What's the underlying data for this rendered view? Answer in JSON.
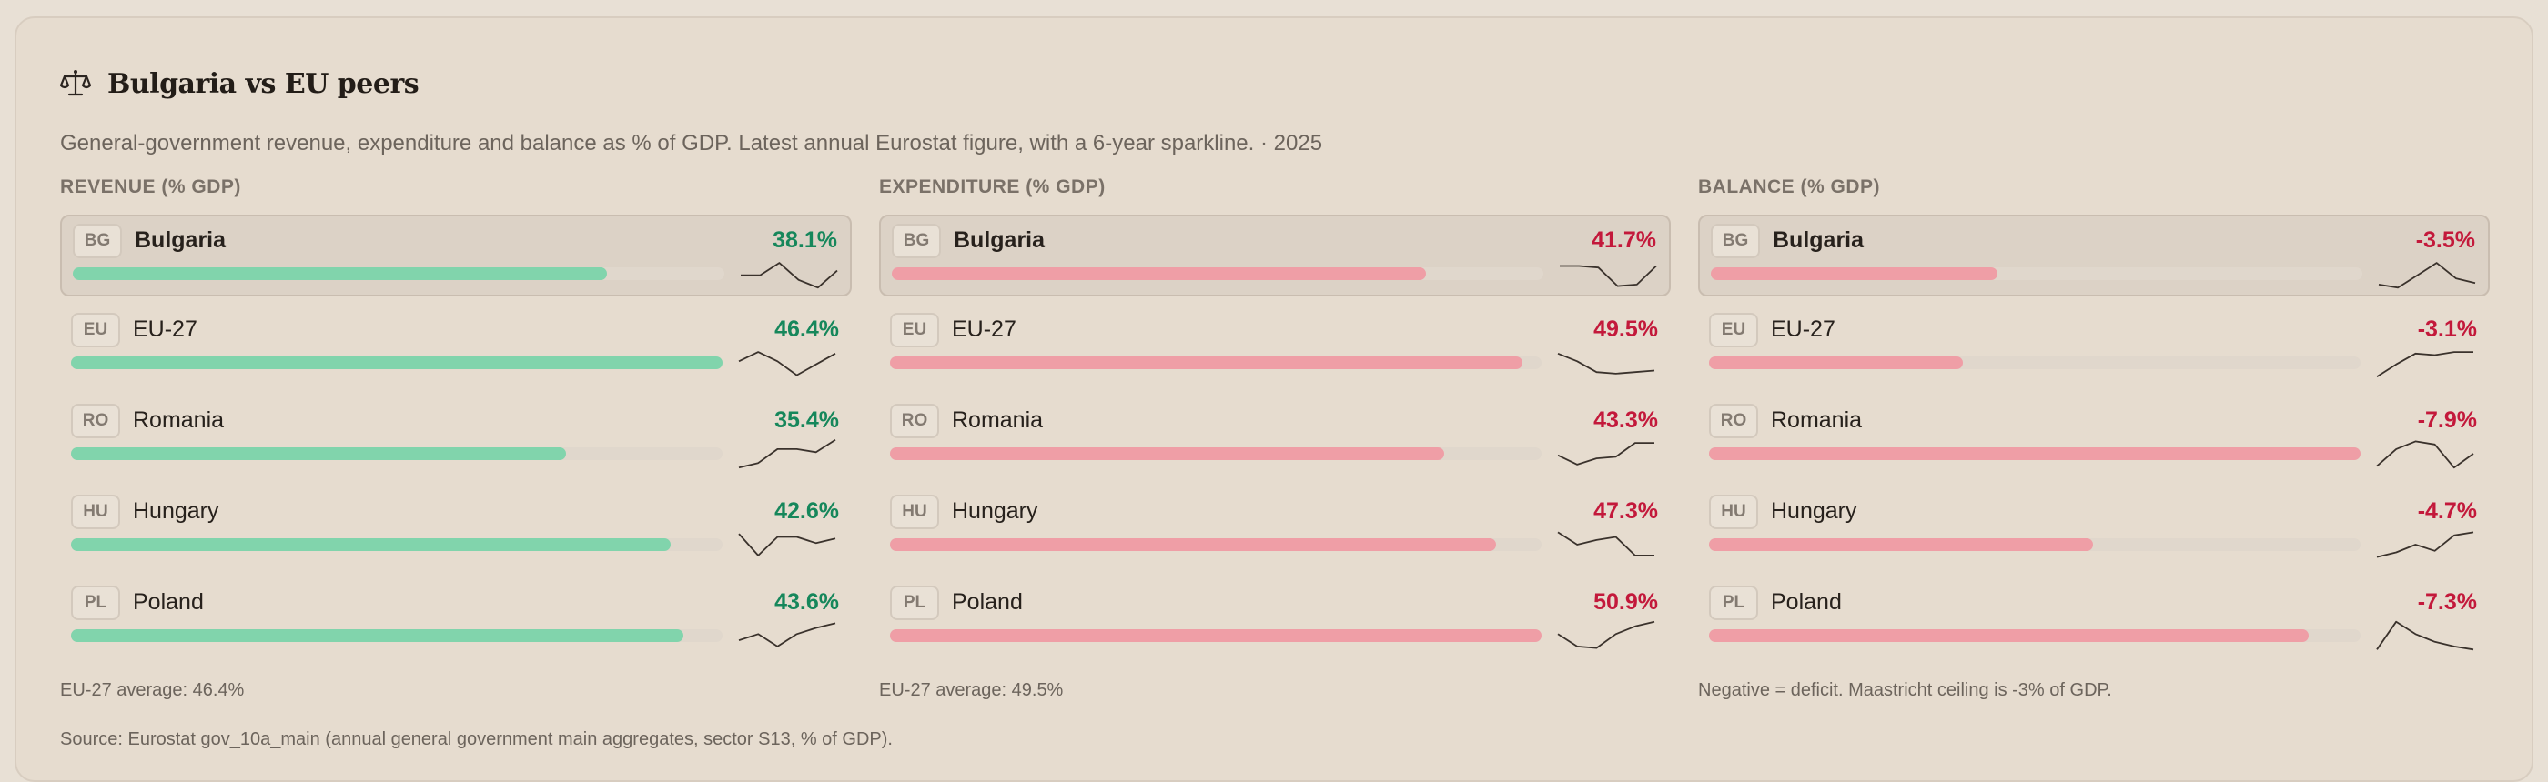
{
  "header": {
    "icon": "scales-icon",
    "title": "Bulgaria vs EU peers",
    "subtitle": "General-government revenue, expenditure and balance as % of GDP. Latest annual Eurostat figure, with a 6-year sparkline. · 2025"
  },
  "colors": {
    "revenue_bar": "#81d4ac",
    "expenditure_bar": "#ef9ea6",
    "balance_bar": "#ef9ea6",
    "positive_text": "#16875b",
    "negative_text": "#c3193b",
    "sparkline": "#3a322c"
  },
  "panels": [
    {
      "key": "revenue",
      "heading": "REVENUE (% GDP)",
      "footnote": "EU-27 average: 46.4%",
      "rows": [
        {
          "code": "BG",
          "name": "Bulgaria",
          "value": "38.1%",
          "fill": 0.82,
          "spark": [
            0.45,
            0.45,
            0.85,
            0.3,
            0.05,
            0.6
          ]
        },
        {
          "code": "EU",
          "name": "EU-27",
          "value": "46.4%",
          "fill": 1.0,
          "spark": [
            0.55,
            0.85,
            0.55,
            0.1,
            0.45,
            0.8
          ]
        },
        {
          "code": "RO",
          "name": "Romania",
          "value": "35.4%",
          "fill": 0.76,
          "spark": [
            0.05,
            0.2,
            0.65,
            0.65,
            0.55,
            0.95
          ]
        },
        {
          "code": "HU",
          "name": "Hungary",
          "value": "42.6%",
          "fill": 0.92,
          "spark": [
            0.85,
            0.15,
            0.75,
            0.75,
            0.55,
            0.7
          ]
        },
        {
          "code": "PL",
          "name": "Poland",
          "value": "43.6%",
          "fill": 0.94,
          "spark": [
            0.35,
            0.55,
            0.15,
            0.55,
            0.75,
            0.9
          ]
        }
      ]
    },
    {
      "key": "expenditure",
      "heading": "EXPENDITURE (% GDP)",
      "footnote": "EU-27 average: 49.5%",
      "rows": [
        {
          "code": "BG",
          "name": "Bulgaria",
          "value": "41.7%",
          "fill": 0.82,
          "spark": [
            0.75,
            0.75,
            0.7,
            0.1,
            0.15,
            0.75
          ]
        },
        {
          "code": "EU",
          "name": "EU-27",
          "value": "49.5%",
          "fill": 0.97,
          "spark": [
            0.8,
            0.55,
            0.2,
            0.15,
            0.2,
            0.25
          ]
        },
        {
          "code": "RO",
          "name": "Romania",
          "value": "43.3%",
          "fill": 0.85,
          "spark": [
            0.45,
            0.15,
            0.35,
            0.4,
            0.85,
            0.85
          ]
        },
        {
          "code": "HU",
          "name": "Hungary",
          "value": "47.3%",
          "fill": 0.93,
          "spark": [
            0.9,
            0.5,
            0.65,
            0.75,
            0.15,
            0.15
          ]
        },
        {
          "code": "PL",
          "name": "Poland",
          "value": "50.9%",
          "fill": 1.0,
          "spark": [
            0.55,
            0.15,
            0.1,
            0.55,
            0.8,
            0.95
          ]
        }
      ]
    },
    {
      "key": "balance",
      "heading": "BALANCE (% GDP)",
      "footnote": "Negative = deficit. Maastricht ceiling is -3% of GDP.",
      "rows": [
        {
          "code": "BG",
          "name": "Bulgaria",
          "value": "-3.5%",
          "fill": 0.44,
          "spark": [
            0.15,
            0.05,
            0.45,
            0.85,
            0.35,
            0.2
          ]
        },
        {
          "code": "EU",
          "name": "EU-27",
          "value": "-3.1%",
          "fill": 0.39,
          "spark": [
            0.05,
            0.45,
            0.8,
            0.75,
            0.85,
            0.85
          ]
        },
        {
          "code": "RO",
          "name": "Romania",
          "value": "-7.9%",
          "fill": 1.0,
          "spark": [
            0.1,
            0.65,
            0.9,
            0.8,
            0.05,
            0.5
          ]
        },
        {
          "code": "HU",
          "name": "Hungary",
          "value": "-4.7%",
          "fill": 0.59,
          "spark": [
            0.1,
            0.25,
            0.5,
            0.3,
            0.8,
            0.9
          ]
        },
        {
          "code": "PL",
          "name": "Poland",
          "value": "-7.3%",
          "fill": 0.92,
          "spark": [
            0.05,
            0.95,
            0.55,
            0.3,
            0.15,
            0.05
          ]
        }
      ]
    }
  ],
  "source": "Source: Eurostat gov_10a_main (annual general government main aggregates, sector S13, % of GDP)."
}
